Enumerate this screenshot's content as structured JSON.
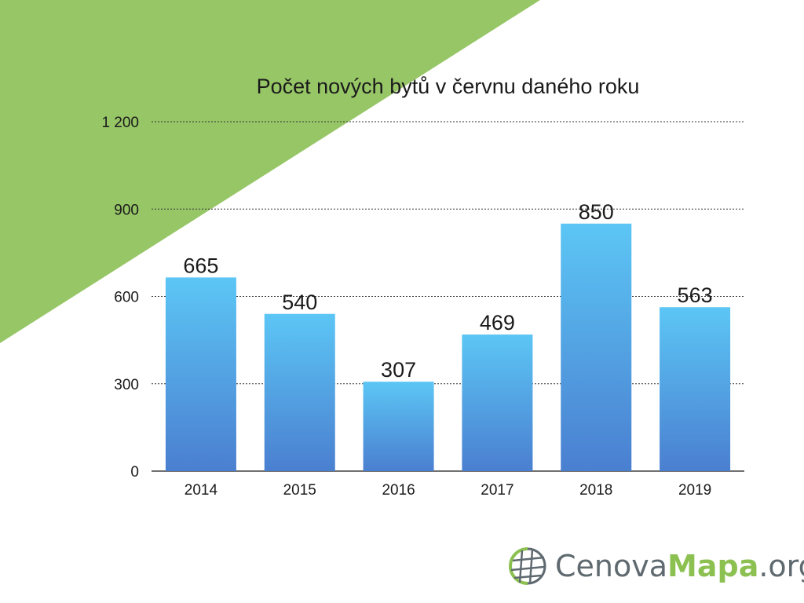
{
  "colors": {
    "background_triangle": "#97c667",
    "bar_top": "#5cc6f5",
    "bar_bottom": "#4a7fd0",
    "gridline": "#333333",
    "logo_gray": "#5f6a70",
    "logo_green": "#8cc152"
  },
  "logo": {
    "icon": "globe-icon",
    "part1": "Cenova",
    "part2": "Mapa",
    "part3": ".org"
  },
  "chart_data": {
    "type": "bar",
    "title": "Počet nových bytů v červnu daného roku",
    "xlabel": "",
    "ylabel": "",
    "categories": [
      "2014",
      "2015",
      "2016",
      "2017",
      "2018",
      "2019"
    ],
    "values": [
      665,
      540,
      307,
      469,
      850,
      563
    ],
    "data_labels": [
      "665",
      "540",
      "307",
      "469",
      "850",
      "563"
    ],
    "ylim": [
      0,
      1200
    ],
    "yticks": [
      0,
      300,
      600,
      900,
      1200
    ],
    "ytick_labels": [
      "0",
      "300",
      "600",
      "900",
      "1 200"
    ],
    "grid": true,
    "legend": "none"
  }
}
